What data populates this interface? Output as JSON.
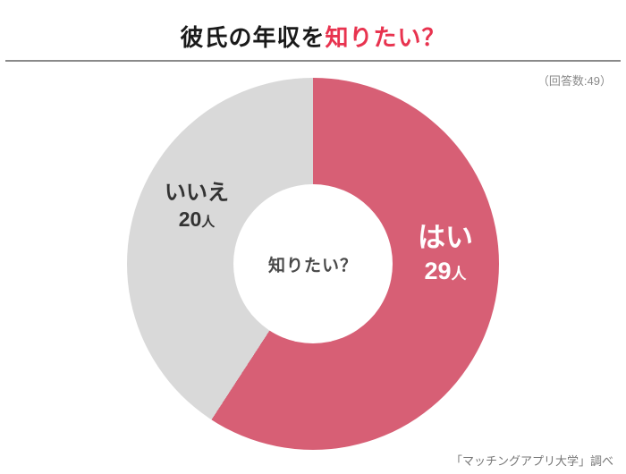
{
  "header": {
    "title_black": "彼氏の年収を",
    "title_accent": "知りたい？",
    "accent_color": "#e8334f",
    "respondents": "（回答数:49）"
  },
  "chart_data": {
    "type": "pie",
    "style": "donut",
    "title": "彼氏の年収を知りたい？",
    "center_label": "知りたい？",
    "categories": [
      "はい",
      "いいえ"
    ],
    "values": [
      29,
      20
    ],
    "unit": "人",
    "total": 49,
    "colors": [
      "#d75f75",
      "#d9d9d9"
    ],
    "start_angle_deg": 0,
    "direction": "clockwise",
    "legend_position": "on-slices",
    "grid": false
  },
  "footer": {
    "source": "「マッチングアプリ大学」調べ"
  }
}
